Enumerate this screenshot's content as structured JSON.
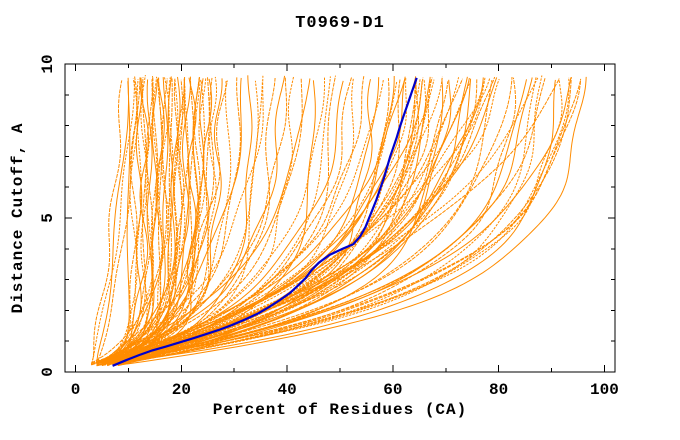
{
  "chart_data": {
    "type": "line",
    "title": "T0969-D1",
    "xlabel": "Percent of Residues (CA)",
    "ylabel": "Distance Cutoff, A",
    "xlim": [
      -2,
      102
    ],
    "ylim": [
      0,
      10
    ],
    "x_major_ticks": [
      0,
      20,
      40,
      60,
      80,
      100
    ],
    "x_minor_ticks": [
      10,
      30,
      50,
      70,
      90
    ],
    "y_major_ticks": [
      0,
      5,
      10
    ],
    "y_minor_ticks": [
      1,
      2,
      3,
      4,
      6,
      7,
      8,
      9
    ],
    "grid": false,
    "legend": "none",
    "colors": {
      "model_lines": "#ff8c00",
      "highlight_line": "#0000cc",
      "axis": "#000000",
      "background": "#ffffff"
    },
    "highlight_series": {
      "name": "highlighted-model",
      "color": "#0000cc",
      "points": [
        [
          7,
          0.2
        ],
        [
          9.5,
          0.38
        ],
        [
          12,
          0.55
        ],
        [
          14.5,
          0.7
        ],
        [
          17,
          0.82
        ],
        [
          19.5,
          0.95
        ],
        [
          22,
          1.08
        ],
        [
          24.5,
          1.22
        ],
        [
          27,
          1.36
        ],
        [
          29.5,
          1.52
        ],
        [
          32,
          1.7
        ],
        [
          34.5,
          1.9
        ],
        [
          36.5,
          2.1
        ],
        [
          38.5,
          2.32
        ],
        [
          40.5,
          2.56
        ],
        [
          42,
          2.8
        ],
        [
          43.5,
          3.05
        ],
        [
          44.6,
          3.3
        ],
        [
          46,
          3.55
        ],
        [
          48,
          3.8
        ],
        [
          50.5,
          4.0
        ],
        [
          52.5,
          4.15
        ],
        [
          53.8,
          4.4
        ],
        [
          54.8,
          4.7
        ],
        [
          55.5,
          5.0
        ],
        [
          56.2,
          5.3
        ],
        [
          56.9,
          5.6
        ],
        [
          57.6,
          5.95
        ],
        [
          58.3,
          6.3
        ],
        [
          58.9,
          6.65
        ],
        [
          59.5,
          7.0
        ],
        [
          60.1,
          7.3
        ],
        [
          60.7,
          7.6
        ],
        [
          61.3,
          7.95
        ],
        [
          61.9,
          8.25
        ],
        [
          62.5,
          8.55
        ],
        [
          63.1,
          8.85
        ],
        [
          63.6,
          9.1
        ],
        [
          64.1,
          9.35
        ],
        [
          64.5,
          9.55
        ]
      ]
    },
    "model_series": {
      "name": "model-pool",
      "color": "#ff8c00",
      "y_span": [
        0.2,
        9.55
      ],
      "curve_params_format": "[x_percent_at_bottom, x_percent_at_top, saturation_tau]",
      "curves": [
        [
          4,
          10,
          0.4
        ],
        [
          5,
          11,
          0.5
        ],
        [
          3,
          11,
          0.6
        ],
        [
          6,
          12,
          0.5
        ],
        [
          4,
          12,
          0.8
        ],
        [
          5,
          13,
          0.6
        ],
        [
          7,
          13,
          1.0
        ],
        [
          3,
          14,
          0.5
        ],
        [
          6,
          14,
          0.9
        ],
        [
          4,
          15,
          0.7
        ],
        [
          5,
          15,
          1.2
        ],
        [
          8,
          16,
          0.6
        ],
        [
          4,
          16,
          1.0
        ],
        [
          6,
          17,
          0.8
        ],
        [
          3,
          17,
          1.3
        ],
        [
          5,
          18,
          0.6
        ],
        [
          7,
          18,
          1.1
        ],
        [
          4,
          19,
          0.9
        ],
        [
          6,
          19,
          1.4
        ],
        [
          5,
          20,
          0.7
        ],
        [
          8,
          20,
          1.2
        ],
        [
          4,
          21,
          0.8
        ],
        [
          6,
          21,
          1.5
        ],
        [
          3,
          22,
          1.0
        ],
        [
          7,
          22,
          0.6
        ],
        [
          5,
          23,
          1.3
        ],
        [
          4,
          23,
          0.9
        ],
        [
          8,
          24,
          1.6
        ],
        [
          6,
          24,
          1.1
        ],
        [
          5,
          25,
          0.8
        ],
        [
          7,
          25,
          1.4
        ],
        [
          4,
          26,
          1.0
        ],
        [
          6,
          26,
          1.6
        ],
        [
          5,
          14,
          0.4
        ],
        [
          7,
          16,
          0.5
        ],
        [
          3,
          18,
          0.8
        ],
        [
          8,
          21,
          1.3
        ],
        [
          4,
          24,
          1.2
        ],
        [
          6,
          15,
          0.6
        ],
        [
          5,
          17,
          0.9
        ],
        [
          7,
          19,
          0.7
        ],
        [
          3,
          20,
          1.1
        ],
        [
          8,
          23,
          1.5
        ],
        [
          6,
          13,
          0.4
        ],
        [
          3,
          9,
          9
        ],
        [
          4,
          10,
          8
        ],
        [
          3,
          11,
          7
        ],
        [
          4,
          12,
          6
        ],
        [
          5,
          27,
          1.2
        ],
        [
          6,
          29,
          1.5
        ],
        [
          4,
          31,
          1.8
        ],
        [
          7,
          33,
          1.4
        ],
        [
          5,
          35,
          2.0
        ],
        [
          6,
          37,
          1.6
        ],
        [
          4,
          39,
          2.2
        ],
        [
          8,
          41,
          1.8
        ],
        [
          5,
          43,
          2.4
        ],
        [
          6,
          45,
          1.5
        ],
        [
          7,
          47,
          2.6
        ],
        [
          4,
          49,
          1.9
        ],
        [
          5,
          51,
          2.8
        ],
        [
          6,
          53,
          2.1
        ],
        [
          8,
          55,
          3.0
        ],
        [
          5,
          57,
          2.3
        ],
        [
          6,
          58,
          3.2
        ],
        [
          4,
          28,
          2.5
        ],
        [
          7,
          32,
          2.9
        ],
        [
          5,
          36,
          3.1
        ],
        [
          6,
          40,
          2.7
        ],
        [
          4,
          44,
          3.0
        ],
        [
          7,
          48,
          2.2
        ],
        [
          5,
          52,
          2.5
        ],
        [
          8,
          56,
          1.7
        ],
        [
          6,
          34,
          1.3
        ],
        [
          5,
          59,
          2.0
        ],
        [
          6,
          60,
          2.4
        ],
        [
          4,
          61,
          2.8
        ],
        [
          7,
          62,
          2.1
        ],
        [
          5,
          63,
          3.0
        ],
        [
          6,
          63,
          2.5
        ],
        [
          8,
          64,
          1.9
        ],
        [
          4,
          64,
          3.2
        ],
        [
          5,
          65,
          2.2
        ],
        [
          7,
          65,
          2.7
        ],
        [
          6,
          66,
          3.4
        ],
        [
          4,
          66,
          2.0
        ],
        [
          5,
          67,
          2.9
        ],
        [
          8,
          67,
          2.3
        ],
        [
          6,
          68,
          3.1
        ],
        [
          4,
          68,
          2.6
        ],
        [
          7,
          69,
          1.8
        ],
        [
          5,
          69,
          3.3
        ],
        [
          6,
          70,
          2.4
        ],
        [
          5,
          62,
          3.5
        ],
        [
          7,
          66,
          2.8
        ],
        [
          4,
          65,
          2.1
        ],
        [
          5,
          71,
          2.2
        ],
        [
          6,
          72,
          3.0
        ],
        [
          4,
          73,
          3.8
        ],
        [
          7,
          74,
          2.5
        ],
        [
          5,
          75,
          4.2
        ],
        [
          6,
          76,
          2.8
        ],
        [
          8,
          77,
          3.4
        ],
        [
          4,
          78,
          4.5
        ],
        [
          5,
          79,
          2.3
        ],
        [
          6,
          80,
          3.6
        ],
        [
          7,
          81,
          4.0
        ],
        [
          5,
          82,
          2.6
        ],
        [
          6,
          74,
          3.2
        ],
        [
          5,
          77,
          2.9
        ],
        [
          7,
          79,
          3.5
        ],
        [
          4,
          75,
          2.4
        ],
        [
          6,
          78,
          4.0
        ],
        [
          5,
          83,
          2.0
        ],
        [
          6,
          85,
          2.4
        ],
        [
          4,
          87,
          2.1
        ],
        [
          7,
          89,
          2.7
        ],
        [
          5,
          91,
          1.9
        ],
        [
          6,
          93,
          2.2
        ],
        [
          4,
          95,
          2.5
        ],
        [
          8,
          96,
          2.0
        ],
        [
          5,
          88,
          4.5
        ],
        [
          6,
          92,
          5.0
        ],
        [
          7,
          94,
          3.0
        ],
        [
          5,
          92,
          2.1
        ],
        [
          7,
          95,
          2.6
        ],
        [
          4,
          86,
          2.3
        ],
        [
          6,
          88,
          2.0
        ],
        [
          5,
          94,
          2.4
        ]
      ]
    }
  }
}
